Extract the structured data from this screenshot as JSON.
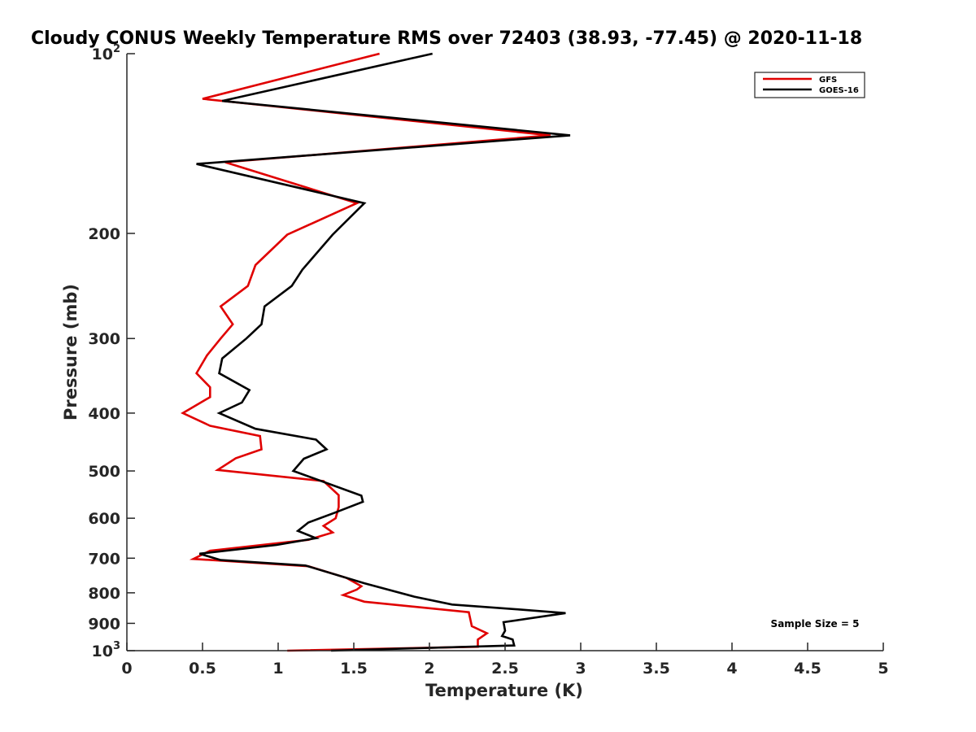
{
  "chart_data": {
    "type": "line",
    "title": "Cloudy CONUS Weekly Temperature RMS over 72403 (38.93, -77.45) @ 2020-11-18",
    "xlabel": "Temperature (K)",
    "ylabel": "Pressure (mb)",
    "xlim": [
      0,
      5
    ],
    "ylim": [
      1000,
      100
    ],
    "y_scale": "log",
    "y_reversed": true,
    "grid": false,
    "legend_position": "top-right",
    "x_ticks": [
      "0",
      "0.5",
      "1",
      "1.5",
      "2",
      "2.5",
      "3",
      "3.5",
      "4",
      "4.5",
      "5"
    ],
    "y_ticks": [
      {
        "value": 100,
        "base": "10",
        "exp": "2"
      },
      {
        "value": 200,
        "label": "200"
      },
      {
        "value": 300,
        "label": "300"
      },
      {
        "value": 400,
        "label": "400"
      },
      {
        "value": 500,
        "label": "500"
      },
      {
        "value": 600,
        "label": "600"
      },
      {
        "value": 700,
        "label": "700"
      },
      {
        "value": 800,
        "label": "800"
      },
      {
        "value": 900,
        "label": "900"
      },
      {
        "value": 1000,
        "base": "10",
        "exp": "3"
      }
    ],
    "annotation": "Sample Size = 5",
    "series": [
      {
        "name": "GFS",
        "color": "#e00000",
        "points": [
          {
            "x": 1.67,
            "y": 100
          },
          {
            "x": 0.5,
            "y": 119
          },
          {
            "x": 2.8,
            "y": 137
          },
          {
            "x": 0.65,
            "y": 152
          },
          {
            "x": 1.52,
            "y": 178
          },
          {
            "x": 1.06,
            "y": 201
          },
          {
            "x": 0.85,
            "y": 226
          },
          {
            "x": 0.8,
            "y": 245
          },
          {
            "x": 0.62,
            "y": 265
          },
          {
            "x": 0.7,
            "y": 284
          },
          {
            "x": 0.62,
            "y": 300
          },
          {
            "x": 0.53,
            "y": 320
          },
          {
            "x": 0.46,
            "y": 343
          },
          {
            "x": 0.55,
            "y": 362
          },
          {
            "x": 0.55,
            "y": 376
          },
          {
            "x": 0.37,
            "y": 400
          },
          {
            "x": 0.55,
            "y": 420
          },
          {
            "x": 0.88,
            "y": 437
          },
          {
            "x": 0.89,
            "y": 460
          },
          {
            "x": 0.72,
            "y": 476
          },
          {
            "x": 0.6,
            "y": 498
          },
          {
            "x": 1.3,
            "y": 520
          },
          {
            "x": 1.4,
            "y": 549
          },
          {
            "x": 1.4,
            "y": 575
          },
          {
            "x": 1.38,
            "y": 600
          },
          {
            "x": 1.3,
            "y": 618
          },
          {
            "x": 1.36,
            "y": 634
          },
          {
            "x": 1.2,
            "y": 652
          },
          {
            "x": 0.55,
            "y": 680
          },
          {
            "x": 0.44,
            "y": 702
          },
          {
            "x": 1.2,
            "y": 722
          },
          {
            "x": 1.45,
            "y": 755
          },
          {
            "x": 1.55,
            "y": 780
          },
          {
            "x": 1.52,
            "y": 790
          },
          {
            "x": 1.43,
            "y": 807
          },
          {
            "x": 1.57,
            "y": 828
          },
          {
            "x": 2.26,
            "y": 862
          },
          {
            "x": 2.28,
            "y": 910
          },
          {
            "x": 2.38,
            "y": 935
          },
          {
            "x": 2.32,
            "y": 958
          },
          {
            "x": 2.32,
            "y": 985
          },
          {
            "x": 1.06,
            "y": 1000
          }
        ]
      },
      {
        "name": "GOES-16",
        "color": "#000000",
        "points": [
          {
            "x": 2.02,
            "y": 100
          },
          {
            "x": 0.63,
            "y": 120
          },
          {
            "x": 2.93,
            "y": 137
          },
          {
            "x": 0.46,
            "y": 153
          },
          {
            "x": 1.57,
            "y": 178
          },
          {
            "x": 1.36,
            "y": 201
          },
          {
            "x": 1.16,
            "y": 230
          },
          {
            "x": 1.09,
            "y": 245
          },
          {
            "x": 0.91,
            "y": 265
          },
          {
            "x": 0.89,
            "y": 284
          },
          {
            "x": 0.79,
            "y": 300
          },
          {
            "x": 0.63,
            "y": 324
          },
          {
            "x": 0.61,
            "y": 343
          },
          {
            "x": 0.81,
            "y": 366
          },
          {
            "x": 0.76,
            "y": 384
          },
          {
            "x": 0.61,
            "y": 400
          },
          {
            "x": 0.85,
            "y": 425
          },
          {
            "x": 1.25,
            "y": 443
          },
          {
            "x": 1.32,
            "y": 460
          },
          {
            "x": 1.17,
            "y": 477
          },
          {
            "x": 1.1,
            "y": 500
          },
          {
            "x": 1.55,
            "y": 550
          },
          {
            "x": 1.56,
            "y": 563
          },
          {
            "x": 1.37,
            "y": 588
          },
          {
            "x": 1.2,
            "y": 610
          },
          {
            "x": 1.13,
            "y": 630
          },
          {
            "x": 1.25,
            "y": 648
          },
          {
            "x": 0.99,
            "y": 665
          },
          {
            "x": 0.48,
            "y": 688
          },
          {
            "x": 0.62,
            "y": 705
          },
          {
            "x": 1.18,
            "y": 720
          },
          {
            "x": 1.57,
            "y": 771
          },
          {
            "x": 1.9,
            "y": 812
          },
          {
            "x": 2.15,
            "y": 837
          },
          {
            "x": 2.59,
            "y": 853
          },
          {
            "x": 2.9,
            "y": 865
          },
          {
            "x": 2.49,
            "y": 896
          },
          {
            "x": 2.5,
            "y": 926
          },
          {
            "x": 2.48,
            "y": 945
          },
          {
            "x": 2.55,
            "y": 958
          },
          {
            "x": 2.56,
            "y": 980
          },
          {
            "x": 1.35,
            "y": 1000
          }
        ]
      }
    ]
  }
}
